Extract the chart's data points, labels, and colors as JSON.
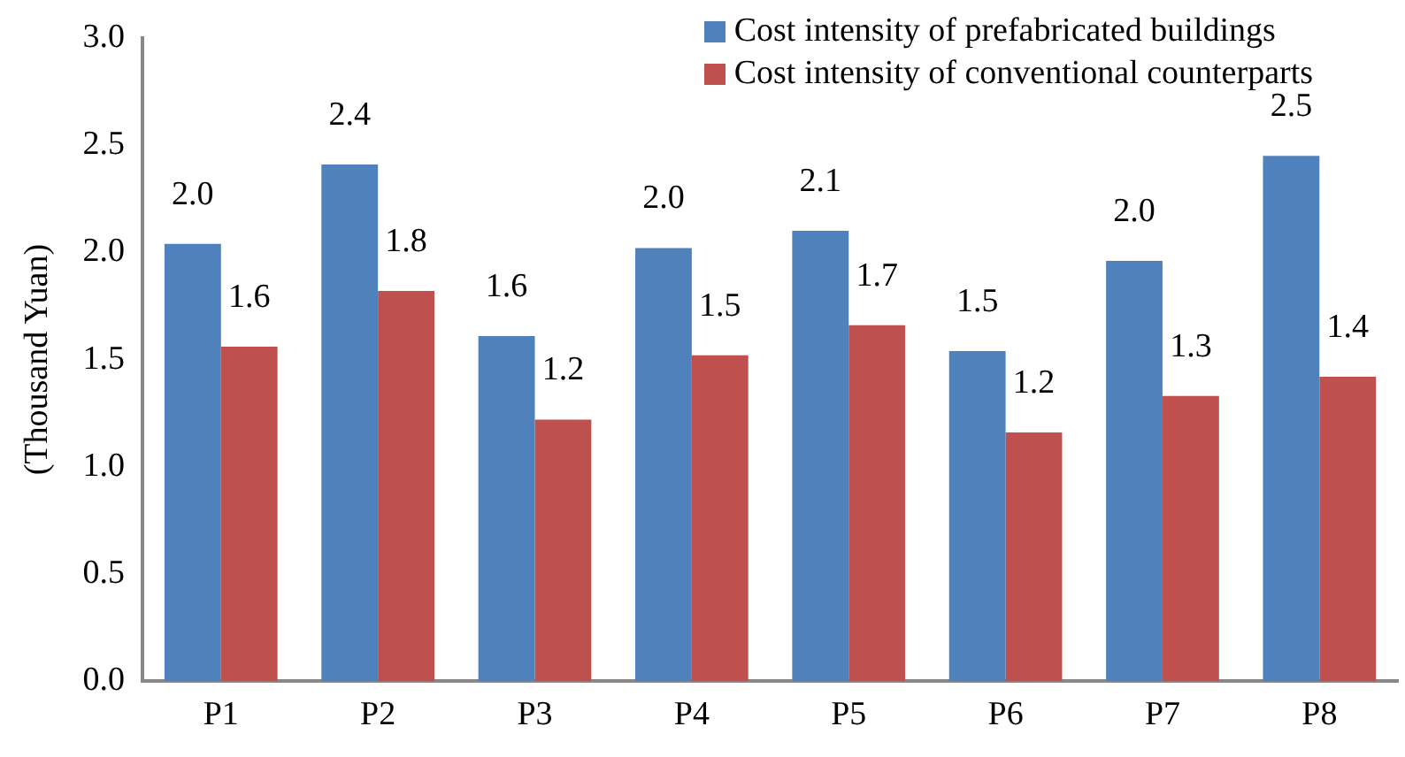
{
  "chart_data": {
    "type": "bar",
    "ylabel": "(Thousand Yuan)",
    "categories": [
      "P1",
      "P2",
      "P3",
      "P4",
      "P5",
      "P6",
      "P7",
      "P8"
    ],
    "series": [
      {
        "name": "Cost intensity of prefabricated buildings",
        "color": "#4f81bd",
        "values": [
          2.04,
          2.41,
          1.61,
          2.02,
          2.1,
          1.54,
          1.96,
          2.45
        ],
        "value_labels": [
          "2.0",
          "2.4",
          "1.6",
          "2.0",
          "2.1",
          "1.5",
          "2.0",
          "2.5"
        ]
      },
      {
        "name": "Cost intensity of conventional counterparts",
        "color": "#c0504d",
        "values": [
          1.56,
          1.82,
          1.22,
          1.52,
          1.66,
          1.16,
          1.33,
          1.42
        ],
        "value_labels": [
          "1.6",
          "1.8",
          "1.2",
          "1.5",
          "1.7",
          "1.2",
          "1.3",
          "1.4"
        ]
      }
    ],
    "ylim": [
      0,
      3.0
    ],
    "yticks": [
      {
        "value": 0,
        "label": "0.0"
      },
      {
        "value": 0.5,
        "label": "0.5"
      },
      {
        "value": 1,
        "label": "1.0"
      },
      {
        "value": 1.5,
        "label": "1.5"
      },
      {
        "value": 2,
        "label": "2.0"
      },
      {
        "value": 2.5,
        "label": "2.5"
      },
      {
        "value": 3,
        "label": "3.0"
      }
    ],
    "grid": false,
    "legend": "top right"
  }
}
